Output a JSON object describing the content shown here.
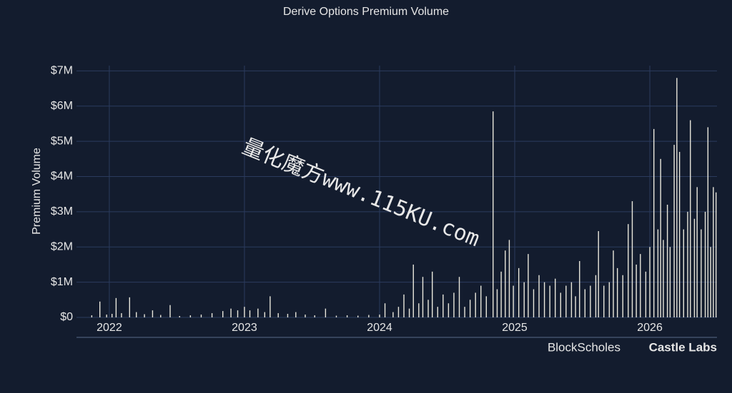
{
  "chart_data": {
    "type": "bar",
    "title": "Derive Options Premium Volume",
    "y_label": "Premium Volume",
    "watermark": "量化魔方www.115KU.com",
    "logos": [
      "BlockScholes",
      "Castle Labs"
    ],
    "color": "#e9e7dc",
    "grid": true,
    "xlim": [
      2021.757,
      2026.497
    ],
    "xticks": [
      2022,
      2023,
      2024,
      2025,
      2026
    ],
    "ylim": [
      0,
      7150000
    ],
    "yticks": [
      {
        "value": 0,
        "label": "$0"
      },
      {
        "value": 1000000,
        "label": "$1M"
      },
      {
        "value": 2000000,
        "label": "$2M"
      },
      {
        "value": 3000000,
        "label": "$3M"
      },
      {
        "value": 4000000,
        "label": "$4M"
      },
      {
        "value": 5000000,
        "label": "$5M"
      },
      {
        "value": 6000000,
        "label": "$6M"
      },
      {
        "value": 7000000,
        "label": "$7M"
      }
    ],
    "x": [
      2021.87,
      2021.93,
      2021.98,
      2022.02,
      2022.05,
      2022.09,
      2022.15,
      2022.2,
      2022.26,
      2022.32,
      2022.38,
      2022.45,
      2022.52,
      2022.6,
      2022.68,
      2022.76,
      2022.84,
      2022.9,
      2022.95,
      2023.0,
      2023.04,
      2023.1,
      2023.15,
      2023.19,
      2023.25,
      2023.32,
      2023.38,
      2023.45,
      2023.52,
      2023.6,
      2023.68,
      2023.76,
      2023.84,
      2023.92,
      2024.0,
      2024.04,
      2024.1,
      2024.14,
      2024.18,
      2024.22,
      2024.25,
      2024.29,
      2024.32,
      2024.36,
      2024.39,
      2024.43,
      2024.47,
      2024.51,
      2024.55,
      2024.59,
      2024.63,
      2024.67,
      2024.71,
      2024.75,
      2024.79,
      2024.84,
      2024.87,
      2024.9,
      2024.93,
      2024.96,
      2024.99,
      2025.03,
      2025.07,
      2025.1,
      2025.14,
      2025.18,
      2025.22,
      2025.26,
      2025.3,
      2025.34,
      2025.38,
      2025.42,
      2025.45,
      2025.48,
      2025.52,
      2025.56,
      2025.6,
      2025.62,
      2025.66,
      2025.7,
      2025.73,
      2025.76,
      2025.8,
      2025.84,
      2025.87,
      2025.9,
      2025.93,
      2025.97,
      2026.0,
      2026.03,
      2026.06,
      2026.08,
      2026.1,
      2026.13,
      2026.15,
      2026.18,
      2026.2,
      2026.22,
      2026.25,
      2026.28,
      2026.3,
      2026.33,
      2026.35,
      2026.38,
      2026.41,
      2026.43,
      2026.45,
      2026.47,
      2026.49
    ],
    "values": [
      60000,
      450000,
      80000,
      100000,
      550000,
      120000,
      570000,
      150000,
      90000,
      200000,
      70000,
      350000,
      40000,
      60000,
      80000,
      120000,
      180000,
      250000,
      200000,
      300000,
      200000,
      250000,
      150000,
      600000,
      120000,
      100000,
      150000,
      80000,
      60000,
      250000,
      50000,
      60000,
      50000,
      70000,
      80000,
      400000,
      150000,
      300000,
      650000,
      250000,
      1500000,
      400000,
      1150000,
      500000,
      1300000,
      300000,
      650000,
      400000,
      700000,
      1150000,
      300000,
      500000,
      700000,
      900000,
      600000,
      5850000,
      800000,
      1300000,
      1900000,
      2200000,
      900000,
      1400000,
      1000000,
      1800000,
      800000,
      1200000,
      1000000,
      900000,
      1100000,
      700000,
      900000,
      1000000,
      600000,
      1600000,
      800000,
      900000,
      1200000,
      2450000,
      900000,
      1000000,
      1900000,
      1400000,
      1200000,
      2650000,
      3300000,
      1500000,
      1800000,
      1300000,
      2000000,
      5350000,
      2500000,
      4500000,
      2200000,
      3200000,
      2000000,
      4900000,
      6800000,
      4700000,
      2500000,
      3000000,
      5600000,
      2800000,
      3700000,
      2500000,
      3000000,
      5400000,
      2000000,
      3700000,
      3550000
    ]
  }
}
